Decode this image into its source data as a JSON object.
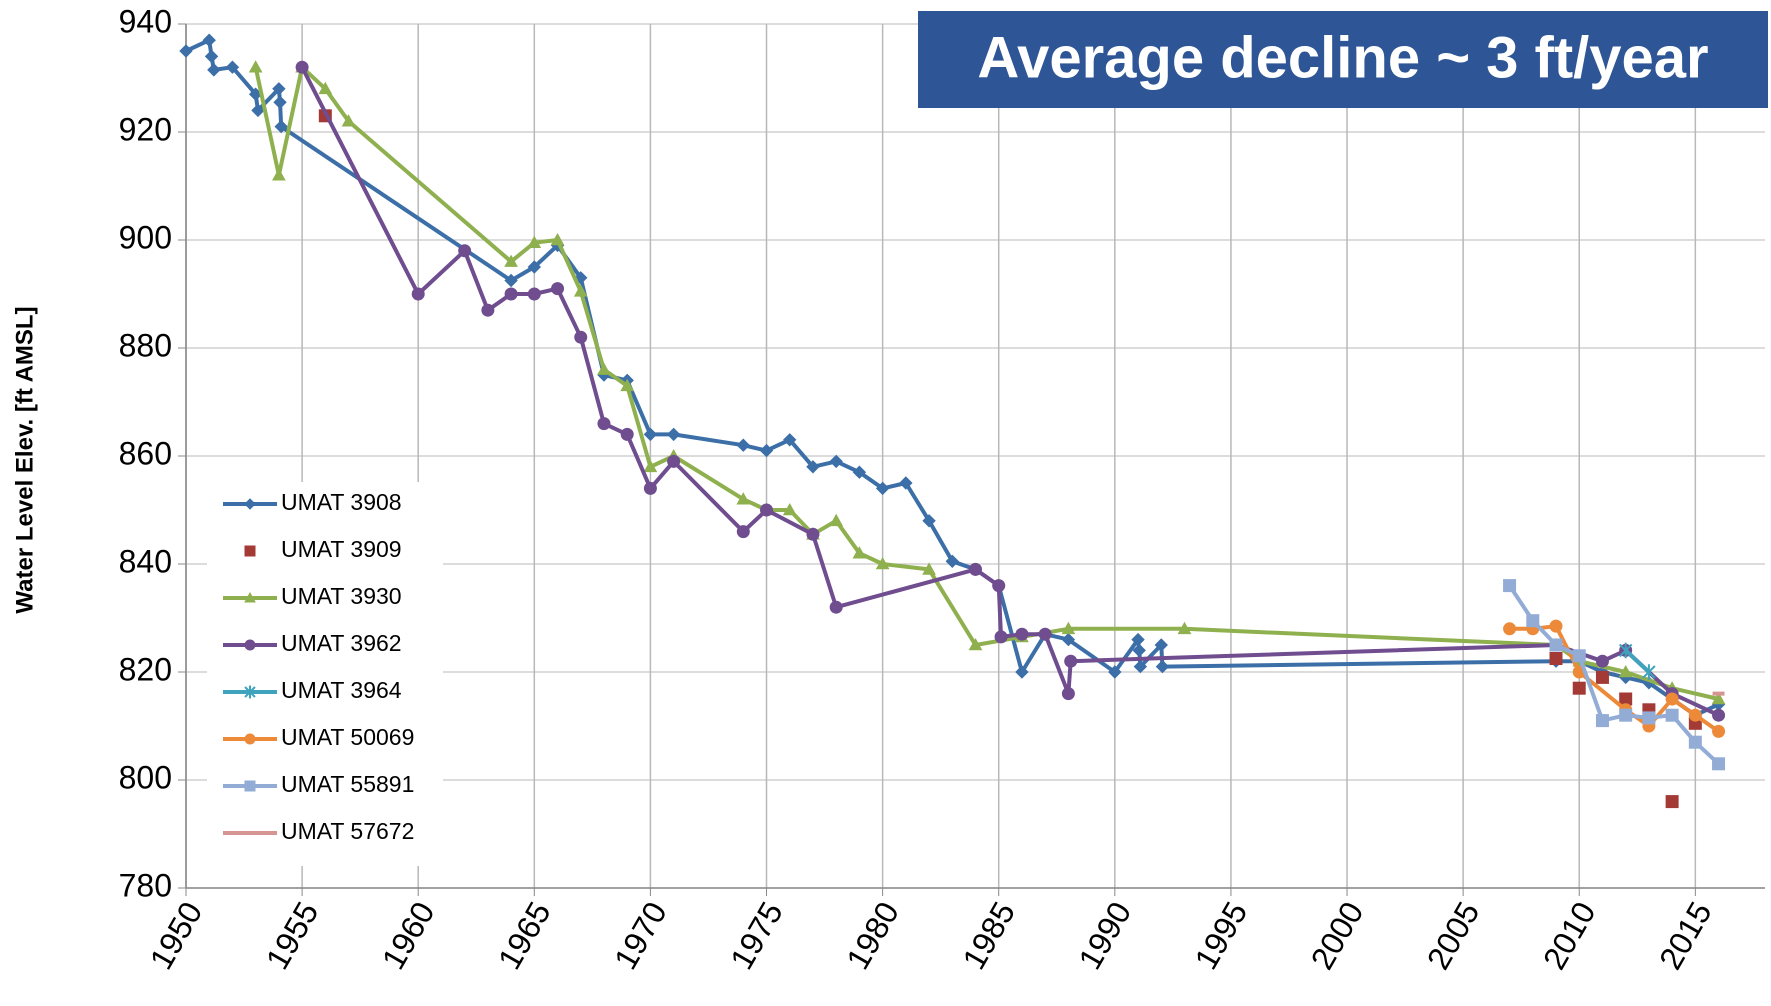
{
  "chart_data": {
    "type": "line",
    "annotation": "Average decline ~ 3 ft/year",
    "ylabel": "Water Level Elev. [ft AMSL]",
    "xlim": [
      1950,
      2018
    ],
    "xticks": [
      1950,
      1955,
      1960,
      1965,
      1970,
      1975,
      1980,
      1985,
      1990,
      1995,
      2000,
      2005,
      2010,
      2015
    ],
    "ylim": [
      780,
      940
    ],
    "yticks": [
      780,
      800,
      820,
      840,
      860,
      880,
      900,
      920,
      940
    ],
    "grid": true,
    "legend": "lower left",
    "series": [
      {
        "name": "UMAT 3908",
        "color": "#3c6fa8",
        "marker": "diamond",
        "line": true,
        "x": [
          1950,
          1951,
          1951.1,
          1951.2,
          1952,
          1953,
          1953.1,
          1954,
          1954.05,
          1954.1,
          1964,
          1965,
          1966,
          1967,
          1968,
          1969,
          1970,
          1971,
          1974,
          1975,
          1976,
          1977,
          1978,
          1979,
          1980,
          1981,
          1982,
          1983,
          1984,
          1985,
          1986,
          1987,
          1988,
          1990,
          1991,
          1991.05,
          1991.1,
          1992,
          1992.05,
          2009,
          2010,
          2011,
          2012,
          2013,
          2014,
          2015,
          2016
        ],
        "values": [
          935,
          937,
          934,
          931.5,
          932,
          927,
          924,
          928,
          925.5,
          921,
          892.5,
          895,
          899,
          893,
          875,
          874,
          864,
          864,
          862,
          861,
          863,
          858,
          859,
          857,
          854,
          855,
          848,
          840.5,
          839,
          836,
          820,
          827,
          826,
          820,
          826,
          824,
          821,
          825,
          821,
          822,
          822,
          820,
          819,
          818,
          815,
          812,
          814
        ]
      },
      {
        "name": "UMAT 3909",
        "color": "#a33a36",
        "marker": "square",
        "line": false,
        "x": [
          1956,
          2009,
          2010,
          2011,
          2012,
          2013,
          2014,
          2015
        ],
        "values": [
          923,
          822.5,
          817,
          819,
          815,
          813,
          796,
          810.5
        ]
      },
      {
        "name": "UMAT 3930",
        "color": "#8fb04e",
        "marker": "triangle",
        "line": true,
        "x": [
          1953,
          1954,
          1955,
          1956,
          1957,
          1964,
          1965,
          1966,
          1967,
          1968,
          1969,
          1970,
          1971,
          1974,
          1975,
          1976,
          1977,
          1978,
          1979,
          1980,
          1982,
          1984,
          1986,
          1988,
          1993,
          2009,
          2010,
          2012,
          2014,
          2016
        ],
        "values": [
          932,
          912,
          932,
          928,
          922,
          896,
          899.5,
          900,
          890.5,
          876,
          873,
          858,
          860,
          852,
          850,
          850,
          845.5,
          848,
          842,
          840,
          839,
          825,
          826.5,
          828,
          828,
          825,
          822,
          820,
          817,
          815
        ]
      },
      {
        "name": "UMAT 3962",
        "color": "#6f4d8f",
        "marker": "circle",
        "line": true,
        "x": [
          1955,
          1960,
          1962,
          1963,
          1964,
          1965,
          1966,
          1967,
          1968,
          1969,
          1970,
          1971,
          1974,
          1975,
          1977,
          1978,
          1984,
          1985,
          1985.1,
          1986,
          1987,
          1988,
          1988.1,
          2009,
          2011,
          2012,
          2014,
          2016
        ],
        "values": [
          932,
          890,
          898,
          887,
          890,
          890,
          891,
          882,
          866,
          864,
          854,
          859,
          846,
          850,
          845.5,
          832,
          839,
          836,
          826.5,
          827,
          827,
          816,
          822,
          825,
          822,
          824,
          816,
          812
        ]
      },
      {
        "name": "UMAT 3964",
        "color": "#3fa3bd",
        "marker": "star",
        "line": true,
        "x": [
          2012,
          2013
        ],
        "values": [
          824,
          820
        ]
      },
      {
        "name": "UMAT 50069",
        "color": "#ec8a3a",
        "marker": "circle",
        "line": true,
        "x": [
          2007,
          2008,
          2009,
          2010,
          2012,
          2013,
          2014,
          2015,
          2016
        ],
        "values": [
          828,
          828,
          828.5,
          820,
          813,
          810,
          815,
          812,
          809
        ]
      },
      {
        "name": "UMAT 55891",
        "color": "#92acd6",
        "marker": "square",
        "line": true,
        "x": [
          2007,
          2008,
          2009,
          2010,
          2011,
          2012,
          2013,
          2014,
          2015,
          2016
        ],
        "values": [
          836,
          829.5,
          825,
          823,
          811,
          812,
          811.5,
          812,
          807,
          803
        ]
      },
      {
        "name": "UMAT 57672",
        "color": "#d69593",
        "marker": "dash",
        "line": true,
        "x": [
          2016
        ],
        "values": [
          816
        ]
      }
    ]
  }
}
